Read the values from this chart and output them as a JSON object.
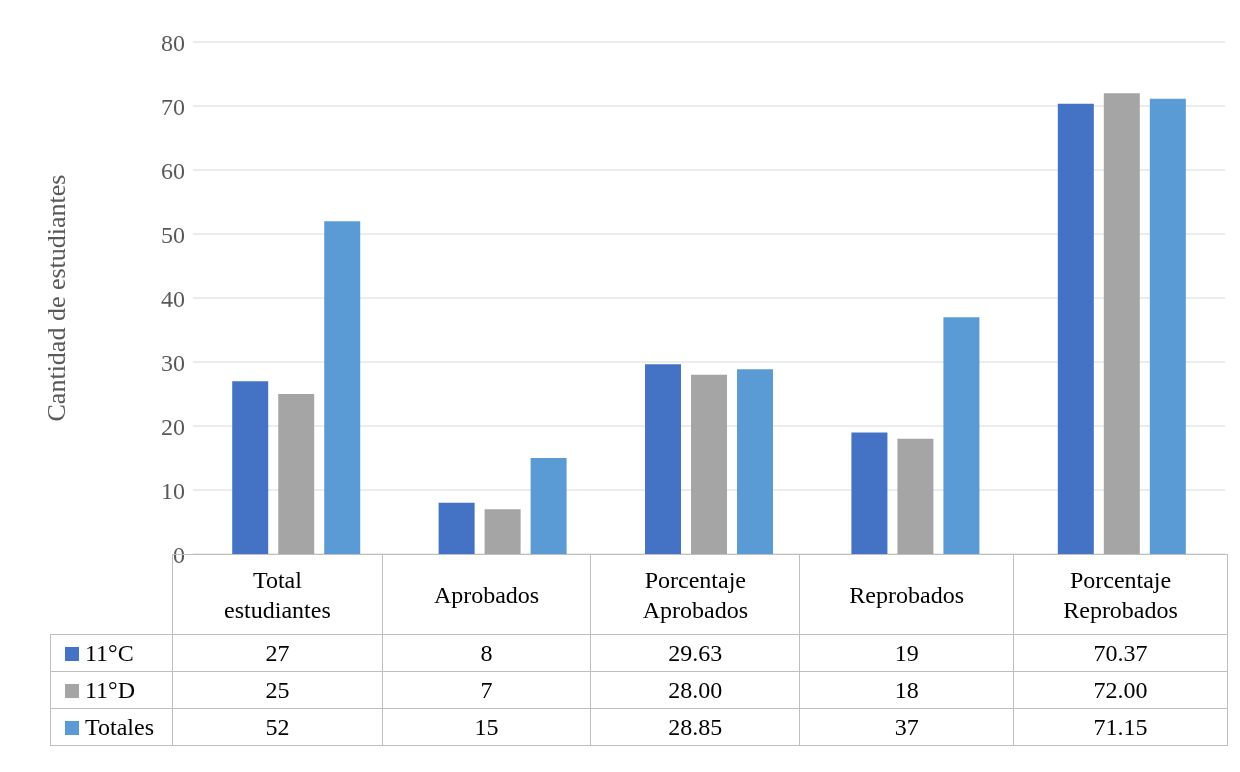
{
  "chart_data": {
    "type": "bar",
    "ylabel": "Cantidad de estudiantes",
    "categories": [
      "Total estudiantes",
      "Aprobados",
      "Porcentaje Aprobados",
      "Reprobados",
      "Porcentaje Reprobados"
    ],
    "series": [
      {
        "name": "11°C",
        "color": "#4472c4",
        "values": [
          27,
          8,
          29.63,
          19,
          70.37
        ],
        "value_labels": [
          "27",
          "8",
          "29.63",
          "19",
          "70.37"
        ]
      },
      {
        "name": "11°D",
        "color": "#a5a5a5",
        "values": [
          25,
          7,
          28,
          18,
          72
        ],
        "value_labels": [
          "25",
          "7",
          "28.00",
          "18",
          "72.00"
        ]
      },
      {
        "name": "Totales",
        "color": "#5b9bd5",
        "values": [
          52,
          15,
          28.85,
          37,
          71.15
        ],
        "value_labels": [
          "52",
          "15",
          "28.85",
          "37",
          "71.15"
        ]
      }
    ],
    "ylim": [
      0,
      80
    ],
    "yticks": [
      0,
      10,
      20,
      30,
      40,
      50,
      60,
      70,
      80
    ],
    "grid": "y",
    "legend": "bottom"
  }
}
